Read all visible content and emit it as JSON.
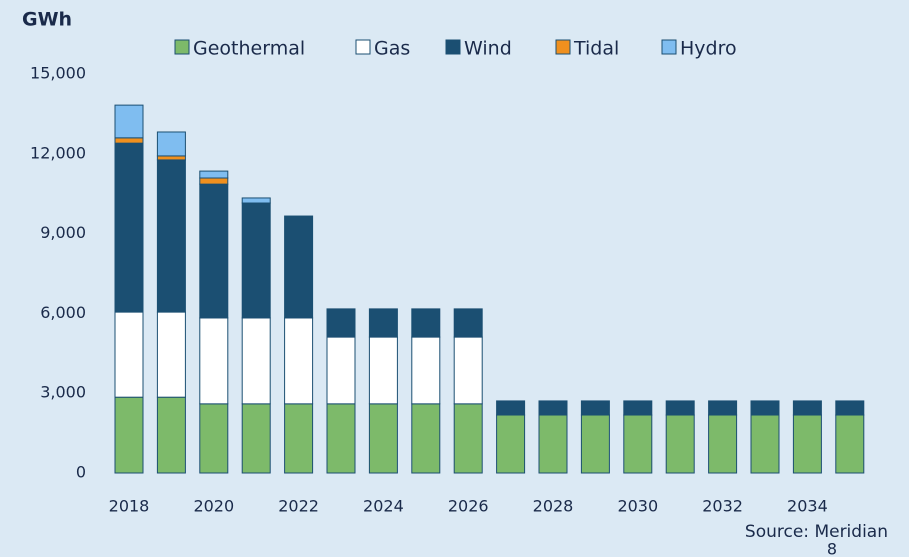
{
  "chart_data": {
    "type": "stacked_bar",
    "y_label": "GWh",
    "source": "Source: Meridian",
    "page_number": "8",
    "categories": [
      2018,
      null,
      2020,
      null,
      2022,
      null,
      2024,
      null,
      2026,
      null,
      2028,
      null,
      2030,
      null,
      2032,
      null,
      2034,
      null
    ],
    "series": [
      {
        "name": "Geothermal",
        "color": "#7dba6a",
        "values": [
          2850,
          2850,
          2600,
          2600,
          2600,
          2600,
          2600,
          2600,
          2600,
          2180,
          2180,
          2180,
          2180,
          2180,
          2180,
          2180,
          2180,
          2180
        ]
      },
      {
        "name": "Gas",
        "color": "#ffffff",
        "values": [
          3200,
          3200,
          3230,
          3230,
          3230,
          2510,
          2510,
          2510,
          2510,
          0,
          0,
          0,
          0,
          0,
          0,
          0,
          0,
          0
        ]
      },
      {
        "name": "Wind",
        "color": "#1b4f72",
        "values": [
          6350,
          5720,
          5030,
          4320,
          3830,
          1060,
          1060,
          1060,
          1060,
          530,
          530,
          530,
          530,
          530,
          530,
          530,
          530,
          530
        ]
      },
      {
        "name": "Tidal",
        "color": "#f0901e",
        "values": [
          200,
          150,
          230,
          0,
          0,
          0,
          0,
          0,
          0,
          0,
          0,
          0,
          0,
          0,
          0,
          0,
          0,
          0
        ]
      },
      {
        "name": "Hydro",
        "color": "#7fbdf0",
        "values": [
          1230,
          900,
          260,
          190,
          0,
          0,
          0,
          0,
          0,
          0,
          0,
          0,
          0,
          0,
          0,
          0,
          0,
          0
        ]
      }
    ],
    "ylim": [
      0,
      15000
    ],
    "yticks": [
      0,
      {
        "value": 3000,
        "label": "3,000"
      },
      {
        "value": 6000,
        "label": "6,000"
      },
      {
        "value": 9000,
        "label": "9,000"
      },
      {
        "value": 12000,
        "label": "12,000"
      },
      {
        "value": 15000,
        "label": "15,000"
      }
    ],
    "grid": false,
    "legend": "top"
  }
}
